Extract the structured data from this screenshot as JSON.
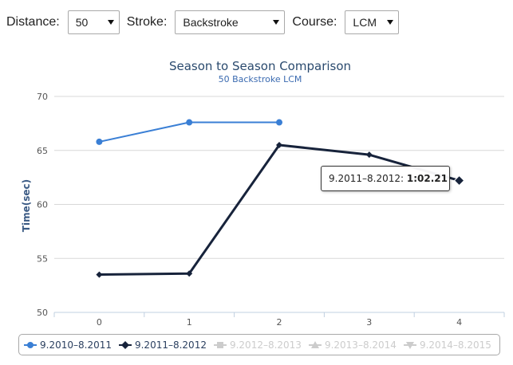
{
  "filters": {
    "distance_label": "Distance:",
    "distance_value": "50",
    "stroke_label": "Stroke:",
    "stroke_value": "Backstroke",
    "course_label": "Course:",
    "course_value": "LCM"
  },
  "tooltip": {
    "series": "9.2011–8.2012:",
    "value": "1:02.21"
  },
  "legend": [
    {
      "label": "9.2010–8.2011",
      "symbol": "circle",
      "active": true
    },
    {
      "label": "9.2011–8.2012",
      "symbol": "diamond",
      "active": true
    },
    {
      "label": "9.2012–8.2013",
      "symbol": "square",
      "active": false
    },
    {
      "label": "9.2013–8.2014",
      "symbol": "triangle",
      "active": false
    },
    {
      "label": "9.2014–8.2015",
      "symbol": "triangle-down",
      "active": false
    }
  ],
  "colors": {
    "series1": "#3a7fd5",
    "series2": "#17233b",
    "inactive": "#cccccc",
    "grid": "#d8d8d8"
  },
  "chart_data": {
    "type": "line",
    "title": "Season to Season Comparison",
    "subtitle": "50 Backstroke LCM",
    "xlabel": "",
    "ylabel": "Time(sec)",
    "x": [
      0,
      1,
      2,
      3,
      4
    ],
    "x_tick_labels": [
      "0",
      "1",
      "2",
      "3",
      "4"
    ],
    "ylim": [
      50,
      70
    ],
    "y_ticks": [
      50,
      55,
      60,
      65,
      70
    ],
    "grid": true,
    "series": [
      {
        "name": "9.2010–8.2011",
        "x": [
          0,
          1,
          2
        ],
        "values": [
          65.8,
          67.6,
          67.6
        ]
      },
      {
        "name": "9.2011–8.2012",
        "x": [
          0,
          1,
          2,
          3,
          4
        ],
        "values": [
          53.5,
          53.6,
          65.5,
          64.6,
          62.21
        ]
      }
    ]
  }
}
